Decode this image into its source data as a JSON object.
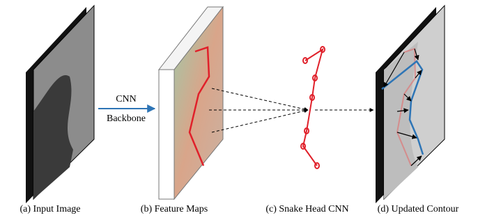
{
  "arrow_label": {
    "line1": "CNN",
    "line2": "Backbone"
  },
  "captions": [
    "(a) Input Image",
    "(b) Feature Maps",
    "(c) Snake Head CNN",
    "(d) Updated Contour"
  ]
}
